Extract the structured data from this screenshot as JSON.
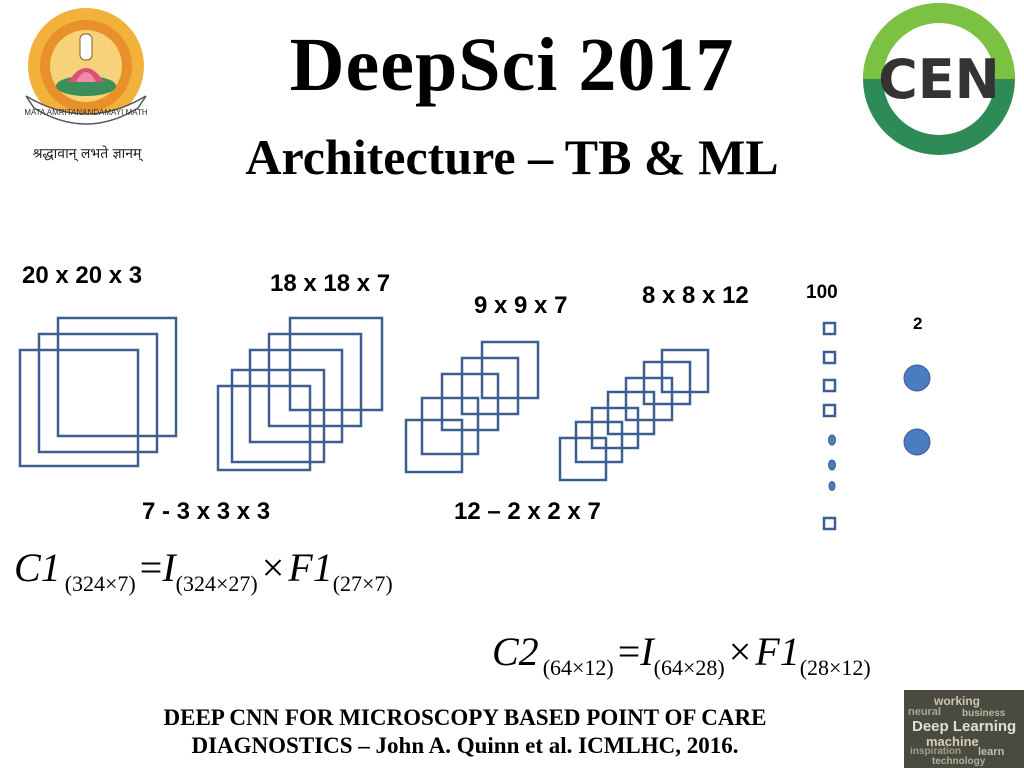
{
  "header": {
    "title": "DeepSci 2017",
    "subtitle": "Architecture – TB & ML"
  },
  "logo_left": {
    "ring_text": "MATA AMRITANANDAMAYI MATH",
    "motto": "श्रद्धावान् लभते ज्ञानम्"
  },
  "logo_right": {
    "text": "CEN"
  },
  "diagram": {
    "layers": [
      {
        "label": "20 x 20 x 3"
      },
      {
        "label": "18 x 18 x 7"
      },
      {
        "label": "9 x 9 x 7"
      },
      {
        "label": "8 x 8 x 12"
      },
      {
        "label": "100"
      },
      {
        "label": "2"
      }
    ],
    "filters": [
      {
        "label": "7 - 3 x 3 x 3"
      },
      {
        "label": "12 – 2 x 2 x 7"
      }
    ],
    "colors": {
      "stroke": "#3d5f8f",
      "node_fill": "#4a7cc0"
    }
  },
  "equations": {
    "eq1": {
      "lhs": "C1",
      "lhs_sub": "(324×7)",
      "eq": "=",
      "i": "I",
      "i_sub": "(324×27)",
      "times": "×",
      "f": "F1",
      "f_sub": "(27×7)"
    },
    "eq2": {
      "lhs": "C2",
      "lhs_sub": "(64×12)",
      "eq": "=",
      "i": "I",
      "i_sub": "(64×28)",
      "times": "×",
      "f": "F1",
      "f_sub": "(28×12)"
    }
  },
  "footer": {
    "line1": "DEEP CNN FOR MICROSCOPY BASED POINT OF CARE",
    "line2": "DIAGNOSTICS – John A. Quinn et al. ICMLHC, 2016."
  },
  "wordcloud": {
    "words": [
      "working",
      "neural",
      "business",
      "Deep Learning",
      "machine",
      "inspiration",
      "learn",
      "technology"
    ]
  }
}
